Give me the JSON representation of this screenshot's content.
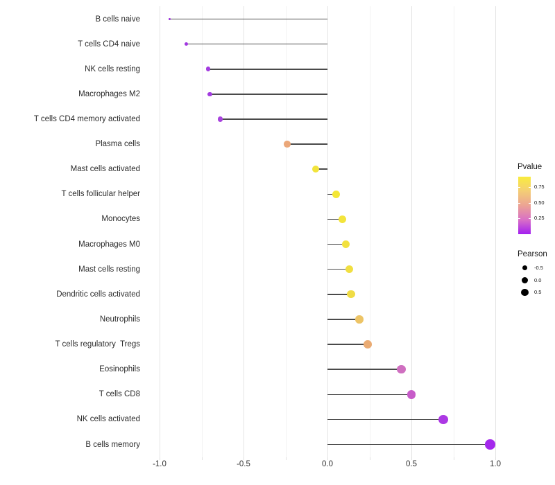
{
  "chart_data": {
    "type": "scatter",
    "subtype": "lollipop",
    "title": "",
    "xlabel": "",
    "ylabel": "",
    "x_axis": {
      "tick_labels": [
        "-1.0",
        "-0.5",
        "0.0",
        "0.5",
        "1.0"
      ],
      "tick_values": [
        -1.0,
        -0.5,
        0.0,
        0.5,
        1.0
      ],
      "minor_tick_values": [
        -0.75,
        -0.25,
        0.25,
        0.75
      ],
      "range": [
        -1.08,
        1.1
      ]
    },
    "points": [
      {
        "label": "B cells naive",
        "pearson": -0.94,
        "color": "#9a2eda"
      },
      {
        "label": "T cells CD4 naive",
        "pearson": -0.84,
        "color": "#a137e0"
      },
      {
        "label": "NK cells resting",
        "pearson": -0.71,
        "color": "#a33ce0"
      },
      {
        "label": "Macrophages M2",
        "pearson": -0.7,
        "color": "#a33ce0"
      },
      {
        "label": "T cells CD4 memory activated",
        "pearson": -0.64,
        "color": "#a843de"
      },
      {
        "label": "Plasma cells",
        "pearson": -0.24,
        "color": "#eba779"
      },
      {
        "label": "Mast cells activated",
        "pearson": -0.07,
        "color": "#f2e43c"
      },
      {
        "label": "T cells follicular helper",
        "pearson": 0.05,
        "color": "#f4e736"
      },
      {
        "label": "Monocytes",
        "pearson": 0.09,
        "color": "#f3e43b"
      },
      {
        "label": "Macrophages M0",
        "pearson": 0.11,
        "color": "#f2e13e"
      },
      {
        "label": "Mast cells resting",
        "pearson": 0.13,
        "color": "#f1df41"
      },
      {
        "label": "Dendritic cells activated",
        "pearson": 0.14,
        "color": "#f0dc45"
      },
      {
        "label": "Neutrophils",
        "pearson": 0.19,
        "color": "#edc466"
      },
      {
        "label": "T cells regulatory  Tregs",
        "pearson": 0.24,
        "color": "#eaab73"
      },
      {
        "label": "Eosinophils",
        "pearson": 0.44,
        "color": "#cf6fc0"
      },
      {
        "label": "T cells CD8",
        "pearson": 0.5,
        "color": "#c75cc9"
      },
      {
        "label": "NK cells activated",
        "pearson": 0.69,
        "color": "#ac38e4"
      },
      {
        "label": "B cells memory",
        "pearson": 0.97,
        "color": "#a428ec"
      }
    ],
    "legend": {
      "pvalue": {
        "title": "Pvalue",
        "tick_labels": [
          "0.75",
          "0.50",
          "0.25"
        ],
        "gradient_top_to_bottom": [
          "#f9ec3d",
          "#f4ce75",
          "#eca394",
          "#d970c6",
          "#a21ff0"
        ]
      },
      "pearson": {
        "title": "Pearson",
        "items": [
          {
            "label": "-0.5"
          },
          {
            "label": "0.0"
          },
          {
            "label": "0.5"
          }
        ]
      }
    },
    "layout_hints": {
      "grid": "vertical major+minor, light gray",
      "legend_position": "right",
      "stem_color": "#4a4a4a",
      "stems_anchor": 0.0
    }
  }
}
